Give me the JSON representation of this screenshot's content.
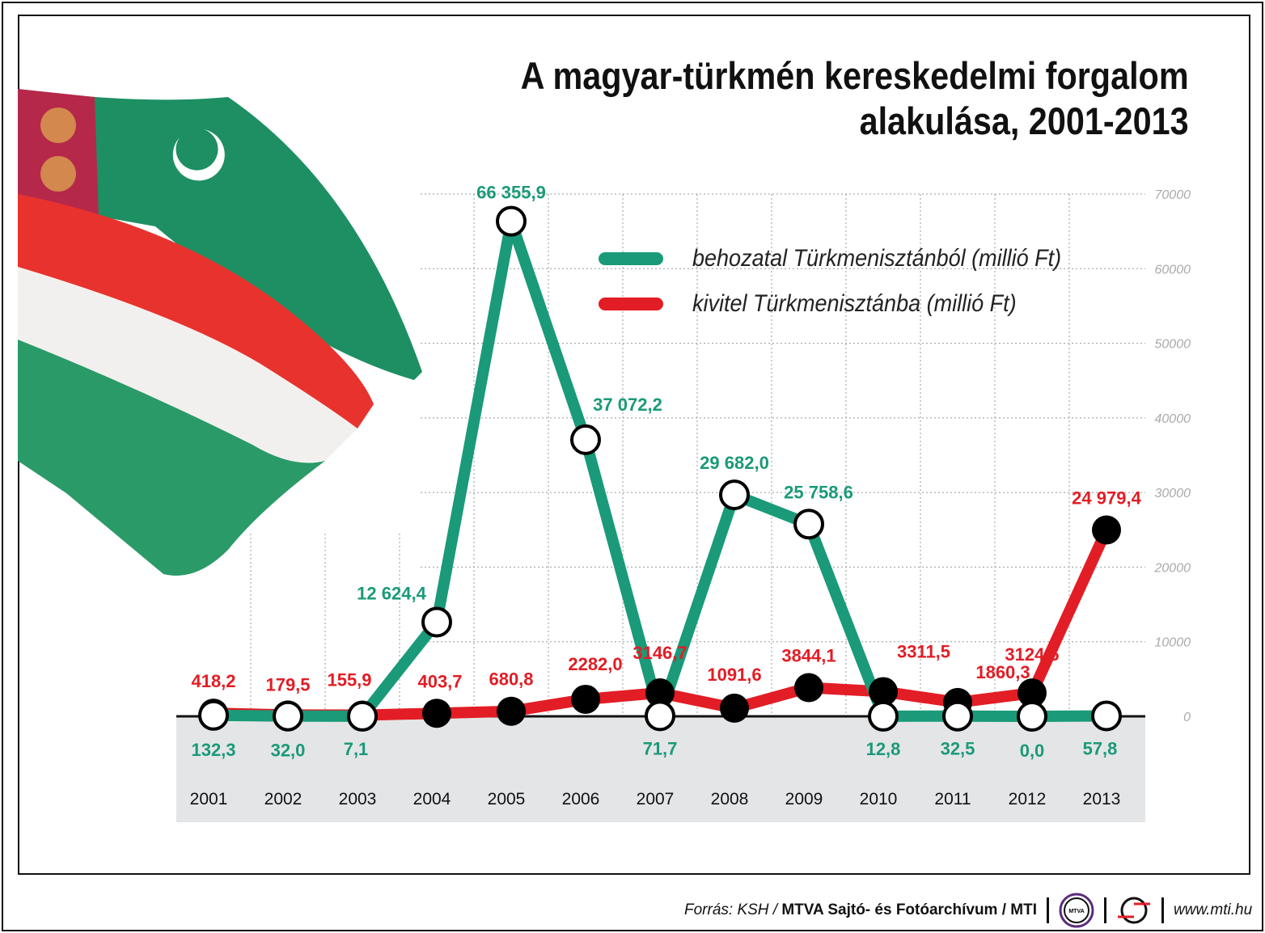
{
  "title_line1": "A magyar-türkmén kereskedelmi forgalom",
  "title_line2": "alakulása, 2001-2013",
  "footer": {
    "source_prefix": "Forrás: KSH /",
    "source_bold": "MTVA Sajtó- és Fotóarchívum / MTI",
    "logo_mtva": "MTVA",
    "url": "www.mti.hu"
  },
  "chart_data": {
    "type": "line",
    "title": "A magyar-türkmén kereskedelmi forgalom alakulása, 2001-2013",
    "x": [
      "2001",
      "2002",
      "2003",
      "2004",
      "2005",
      "2006",
      "2007",
      "2008",
      "2009",
      "2010",
      "2011",
      "2012",
      "2013"
    ],
    "ylim": [
      0,
      70000
    ],
    "yticks": [
      "0",
      "10000",
      "20000",
      "30000",
      "40000",
      "50000",
      "60000",
      "70000"
    ],
    "y_axis_position": "right",
    "grid": true,
    "legend_placement": "top-right",
    "series": [
      {
        "name": "behozatal Türkmenisztánból (millió Ft)",
        "color": "#1a9a78",
        "values": [
          132.3,
          32.0,
          7.1,
          12624.4,
          66355.9,
          37072.2,
          71.7,
          29682.0,
          25758.6,
          12.8,
          32.5,
          0.0,
          57.8
        ],
        "labels": [
          "132,3",
          "32,0",
          "7,1",
          "12 624,4",
          "66 355,9",
          "37 072,2",
          "71,7",
          "29 682,0",
          "25 758,6",
          "12,8",
          "32,5",
          "0,0",
          "57,8"
        ]
      },
      {
        "name": "kivitel Türkmenisztánba (millió Ft)",
        "color": "#e21d25",
        "values": [
          418.2,
          179.5,
          155.9,
          403.7,
          680.8,
          2282.0,
          3146.7,
          1091.6,
          3844.1,
          3311.5,
          1860.3,
          3124.6,
          24979.4
        ],
        "labels": [
          "418,2",
          "179,5",
          "155,9",
          "403,7",
          "680,8",
          "2282,0",
          "3146,7",
          "1091,6",
          "3844,1",
          "3311,5",
          "1860,3",
          "3124,6",
          "24 979,4"
        ]
      }
    ]
  }
}
